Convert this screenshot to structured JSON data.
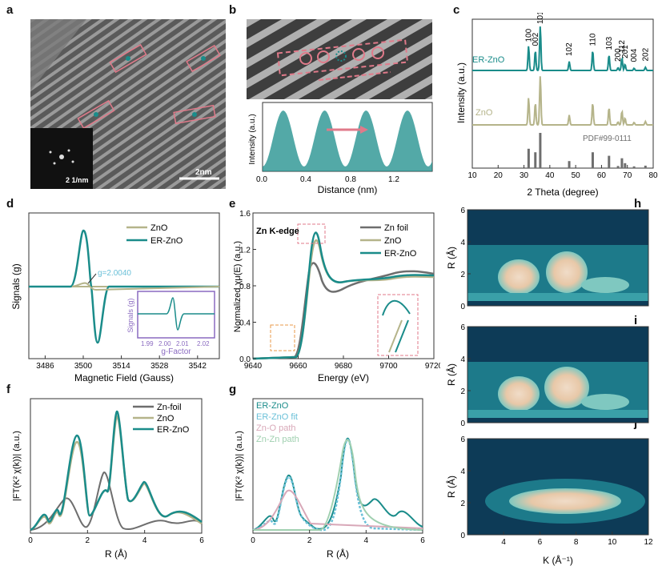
{
  "panel_labels": [
    "a",
    "b",
    "c",
    "d",
    "e",
    "f",
    "g",
    "h",
    "i",
    "j"
  ],
  "panel_a": {
    "scale_bar": "2nm",
    "fft_label": "2 1/nm"
  },
  "panel_b": {
    "xlabel": "Distance (nm)",
    "ylabel": "Intensity (a.u.)",
    "xticks": [
      "0.0",
      "0.4",
      "0.8",
      "1.2"
    ]
  },
  "colors": {
    "teal": "#1a8c8a",
    "khaki": "#b5b48a",
    "gray": "#6e6e6e",
    "pink": "#e07a8a",
    "orange": "#e89a4a",
    "violet": "#8a6ac0",
    "lightblue": "#6ac0d8",
    "pinkpath": "#d8a8b8",
    "green": "#a0d0b0"
  },
  "chart_data": [
    {
      "id": "c",
      "type": "line",
      "xlabel": "2 Theta (degree)",
      "ylabel": "Intensity (a.u.)",
      "xlim": [
        10,
        80
      ],
      "xticks": [
        10,
        20,
        30,
        40,
        50,
        60,
        70,
        80
      ],
      "series": [
        {
          "name": "ER-ZnO",
          "color": "#1a8c8a"
        },
        {
          "name": "ZnO",
          "color": "#b5b48a"
        },
        {
          "name": "PDF#99-0111",
          "color": "#6e6e6e"
        }
      ],
      "peaks": [
        {
          "label": "100",
          "x": 31.8,
          "h": 0.55
        },
        {
          "label": "002",
          "x": 34.4,
          "h": 0.45
        },
        {
          "label": "101",
          "x": 36.3,
          "h": 1.0
        },
        {
          "label": "102",
          "x": 47.5,
          "h": 0.2
        },
        {
          "label": "110",
          "x": 56.6,
          "h": 0.45
        },
        {
          "label": "103",
          "x": 62.9,
          "h": 0.35
        },
        {
          "label": "200",
          "x": 66.4,
          "h": 0.06
        },
        {
          "label": "112",
          "x": 67.9,
          "h": 0.28
        },
        {
          "label": "201",
          "x": 69.1,
          "h": 0.14
        },
        {
          "label": "004",
          "x": 72.6,
          "h": 0.05
        },
        {
          "label": "202",
          "x": 77.0,
          "h": 0.07
        }
      ]
    },
    {
      "id": "d",
      "type": "line",
      "xlabel": "Magnetic Field (Gauss)",
      "ylabel": "Signals (g)",
      "xlim": [
        3480,
        3550
      ],
      "xticks": [
        3486,
        3500,
        3514,
        3528,
        3542
      ],
      "annotation": "g=2.0040",
      "series": [
        {
          "name": "ZnO",
          "color": "#b5b48a"
        },
        {
          "name": "ER-ZnO",
          "color": "#1a8c8a"
        }
      ],
      "inset": {
        "xlabel": "g-Factor",
        "ylabel": "Signals (g)",
        "xticks": [
          "1.99",
          "2.00",
          "2.01",
          "2.02"
        ]
      }
    },
    {
      "id": "e",
      "type": "line",
      "title": "Zn K-edge",
      "xlabel": "Energy (eV)",
      "ylabel": "Normalized χμ(E) (a.u.)",
      "xlim": [
        9640,
        9720
      ],
      "ylim": [
        0,
        1.6
      ],
      "xticks": [
        9640,
        9660,
        9680,
        9700,
        9720
      ],
      "yticks": [
        "0.0",
        "0.4",
        "0.8",
        "1.2",
        "1.6"
      ],
      "series": [
        {
          "name": "Zn foil",
          "color": "#6e6e6e"
        },
        {
          "name": "ZnO",
          "color": "#b5b48a"
        },
        {
          "name": "ER-ZnO",
          "color": "#1a8c8a"
        }
      ]
    },
    {
      "id": "f",
      "type": "line",
      "xlabel": "R (Å)",
      "ylabel": "|FT(K² χ(k))| (a.u.)",
      "xlim": [
        0,
        6
      ],
      "xticks": [
        0,
        2,
        4,
        6
      ],
      "series": [
        {
          "name": "Zn-foil",
          "color": "#6e6e6e"
        },
        {
          "name": "ZnO",
          "color": "#b5b48a"
        },
        {
          "name": "ER-ZnO",
          "color": "#1a8c8a"
        }
      ]
    },
    {
      "id": "g",
      "type": "line",
      "xlabel": "R (Å)",
      "ylabel": "|FT(K² χ(k))| (a.u.)",
      "xlim": [
        0,
        6
      ],
      "xticks": [
        0,
        2,
        4,
        6
      ],
      "series": [
        {
          "name": "ER-ZnO",
          "color": "#1a8c8a"
        },
        {
          "name": "ER-ZnO fit",
          "color": "#6ac0d8"
        },
        {
          "name": "Zn-O path",
          "color": "#d8a8b8"
        },
        {
          "name": "Zn-Zn path",
          "color": "#a0d0b0"
        }
      ]
    },
    {
      "id": "h",
      "type": "heatmap",
      "ylabel": "R (Å)",
      "ylim": [
        0,
        6
      ],
      "yticks": [
        0,
        2,
        4,
        6
      ]
    },
    {
      "id": "i",
      "type": "heatmap",
      "ylabel": "R (Å)",
      "ylim": [
        0,
        6
      ],
      "yticks": [
        0,
        2,
        4,
        6
      ]
    },
    {
      "id": "j",
      "type": "heatmap",
      "xlabel": "K (Å⁻¹)",
      "ylabel": "R (Å)",
      "xlim": [
        2,
        12
      ],
      "xticks": [
        4,
        6,
        8,
        10,
        12
      ],
      "ylim": [
        0,
        6
      ],
      "yticks": [
        0,
        2,
        4,
        6
      ]
    }
  ]
}
